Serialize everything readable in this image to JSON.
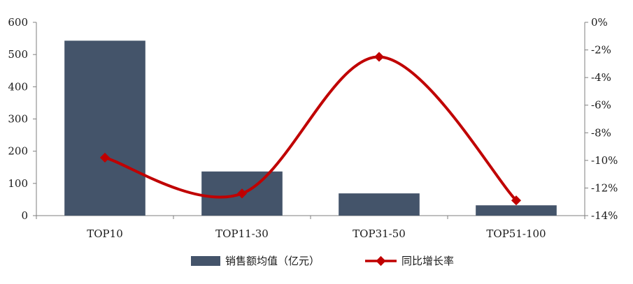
{
  "chart_data": {
    "type": "bar",
    "categories": [
      "TOP10",
      "TOP11-30",
      "TOP31-50",
      "TOP51-100"
    ],
    "series": [
      {
        "name": "销售额均值（亿元）",
        "type": "bar",
        "axis": "left",
        "color": "#44546a",
        "values": [
          543,
          137,
          69,
          32
        ]
      },
      {
        "name": "同比增长率",
        "type": "line",
        "axis": "right",
        "color": "#c00000",
        "values": [
          -9.8,
          -12.4,
          -2.5,
          -12.9
        ]
      }
    ],
    "y_left": {
      "min": 0,
      "max": 600,
      "step": 100,
      "ticks": [
        "0",
        "100",
        "200",
        "300",
        "400",
        "500",
        "600"
      ]
    },
    "y_right": {
      "min": -14,
      "max": 0,
      "step": 2,
      "ticks": [
        "0%",
        "-2%",
        "-4%",
        "-6%",
        "-8%",
        "-10%",
        "-12%",
        "-14%"
      ]
    },
    "legend_position": "bottom",
    "grid": false
  }
}
